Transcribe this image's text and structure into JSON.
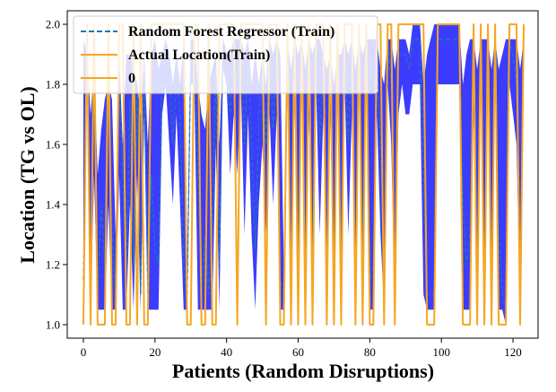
{
  "chart_data": {
    "type": "line",
    "xlabel": "Patients (Random Disruptions)",
    "ylabel": "Location (TG vs OL)",
    "xlim": [
      -4.5,
      127
    ],
    "ylim": [
      0.955,
      2.045
    ],
    "xticks": [
      0,
      20,
      40,
      60,
      80,
      100,
      120
    ],
    "yticks": [
      1.0,
      1.2,
      1.4,
      1.6,
      1.8,
      2.0
    ],
    "xtick_labels": [
      "0",
      "20",
      "40",
      "60",
      "80",
      "100",
      "120"
    ],
    "ytick_labels": [
      "1.0",
      "1.2",
      "1.4",
      "1.6",
      "1.8",
      "2.0"
    ],
    "legend_position": "top-left",
    "colors": {
      "predicted": "#1f77b4",
      "actual": "#f5a623",
      "zero": "#f5a623",
      "fill": "#1a1aff"
    },
    "legend": [
      {
        "label": "Random Forest Regressor (Train)",
        "style": "dashed",
        "color": "#1f77b4"
      },
      {
        "label": "Actual Location(Train)",
        "style": "solid",
        "color": "#f5a623"
      },
      {
        "label": "0",
        "style": "solid",
        "color": "#f5a623"
      }
    ],
    "x": [
      0,
      1,
      2,
      3,
      4,
      5,
      6,
      7,
      8,
      9,
      10,
      11,
      12,
      13,
      14,
      15,
      16,
      17,
      18,
      19,
      20,
      21,
      22,
      23,
      24,
      25,
      26,
      27,
      28,
      29,
      30,
      31,
      32,
      33,
      34,
      35,
      36,
      37,
      38,
      39,
      40,
      41,
      42,
      43,
      44,
      45,
      46,
      47,
      48,
      49,
      50,
      51,
      52,
      53,
      54,
      55,
      56,
      57,
      58,
      59,
      60,
      61,
      62,
      63,
      64,
      65,
      66,
      67,
      68,
      69,
      70,
      71,
      72,
      73,
      74,
      75,
      76,
      77,
      78,
      79,
      80,
      81,
      82,
      83,
      84,
      85,
      86,
      87,
      88,
      89,
      90,
      91,
      92,
      93,
      94,
      95,
      96,
      97,
      98,
      99,
      100,
      101,
      102,
      103,
      104,
      105,
      106,
      107,
      108,
      109,
      110,
      111,
      112,
      113,
      114,
      115,
      116,
      117,
      118,
      119,
      120,
      121,
      122,
      123
    ],
    "series": [
      {
        "name": "Random Forest Regressor (Train)",
        "values": [
          1.15,
          1.9,
          1.1,
          1.85,
          1.1,
          1.4,
          1.2,
          1.75,
          1.3,
          1.1,
          1.8,
          1.5,
          1.15,
          1.75,
          1.2,
          1.8,
          1.1,
          1.85,
          1.1,
          1.5,
          1.25,
          1.2,
          1.85,
          1.9,
          1.85,
          1.6,
          1.85,
          1.7,
          1.2,
          1.1,
          1.9,
          1.9,
          1.5,
          1.1,
          1.3,
          1.1,
          1.35,
          1.85,
          1.2,
          1.95,
          1.9,
          1.7,
          1.9,
          1.8,
          1.95,
          1.6,
          1.9,
          1.6,
          1.25,
          1.7,
          1.85,
          1.6,
          1.9,
          1.65,
          1.9,
          1.15,
          1.1,
          1.95,
          1.15,
          1.9,
          1.3,
          1.95,
          1.2,
          1.9,
          1.25,
          1.95,
          1.6,
          1.9,
          1.15,
          1.85,
          1.2,
          1.9,
          1.25,
          1.95,
          1.6,
          1.9,
          1.15,
          1.95,
          1.3,
          1.95,
          1.15,
          1.2,
          1.9,
          1.6,
          1.1,
          1.95,
          1.8,
          1.1,
          1.9,
          1.9,
          1.9,
          1.85,
          1.95,
          1.95,
          1.95,
          1.5,
          1.1,
          1.1,
          1.1,
          1.95,
          1.95,
          1.95,
          1.95,
          1.95,
          1.95,
          1.95,
          1.4,
          1.2,
          1.3,
          1.9,
          1.15,
          1.95,
          1.05,
          1.95,
          1.2,
          1.95,
          1.3,
          1.1,
          1.05,
          1.95,
          1.9,
          1.8,
          1.1,
          1.95
        ],
        "fill_top": [
          1.95,
          1.9,
          1.7,
          1.85,
          1.5,
          1.65,
          1.75,
          1.8,
          1.75,
          1.3,
          1.9,
          1.6,
          1.9,
          1.9,
          1.85,
          1.8,
          1.7,
          1.9,
          1.6,
          1.9,
          1.95,
          1.85,
          1.9,
          1.95,
          1.9,
          1.8,
          1.9,
          1.8,
          1.95,
          1.2,
          1.95,
          1.95,
          1.8,
          1.7,
          1.65,
          1.8,
          1.85,
          1.9,
          1.6,
          1.95,
          1.9,
          1.9,
          1.95,
          1.95,
          1.95,
          1.9,
          1.95,
          1.8,
          1.9,
          1.8,
          1.9,
          1.8,
          1.95,
          1.9,
          1.95,
          1.9,
          1.2,
          1.95,
          1.85,
          1.95,
          1.9,
          1.95,
          1.85,
          1.95,
          1.9,
          1.95,
          1.95,
          1.9,
          1.85,
          1.9,
          1.8,
          1.9,
          1.9,
          1.95,
          1.9,
          1.95,
          1.85,
          1.95,
          1.9,
          1.95,
          1.95,
          1.95,
          1.95,
          1.85,
          1.8,
          1.95,
          1.95,
          1.85,
          1.95,
          1.95,
          1.95,
          1.9,
          2.0,
          2.0,
          2.0,
          1.8,
          1.9,
          1.95,
          2.0,
          2.0,
          2.0,
          2.0,
          2.0,
          2.0,
          2.0,
          2.0,
          1.8,
          1.9,
          1.95,
          1.95,
          1.85,
          1.95,
          1.95,
          1.95,
          1.85,
          1.95,
          1.85,
          1.9,
          1.95,
          1.95,
          1.95,
          1.95,
          1.85,
          1.95
        ],
        "fill_bottom": [
          1.15,
          1.85,
          1.05,
          1.5,
          1.05,
          1.05,
          1.05,
          1.4,
          1.05,
          1.05,
          1.5,
          1.05,
          1.05,
          1.4,
          1.05,
          1.5,
          1.05,
          1.7,
          1.05,
          1.05,
          1.05,
          1.05,
          1.7,
          1.8,
          1.6,
          1.4,
          1.7,
          1.4,
          1.05,
          1.05,
          1.8,
          1.8,
          1.05,
          1.05,
          1.05,
          1.05,
          1.05,
          1.6,
          1.05,
          1.85,
          1.8,
          1.5,
          1.7,
          1.5,
          1.8,
          1.3,
          1.7,
          1.3,
          1.05,
          1.4,
          1.6,
          1.3,
          1.7,
          1.4,
          1.7,
          1.05,
          1.05,
          1.8,
          1.05,
          1.75,
          1.05,
          1.8,
          1.05,
          1.7,
          1.05,
          1.8,
          1.3,
          1.7,
          1.05,
          1.7,
          1.05,
          1.75,
          1.05,
          1.8,
          1.3,
          1.7,
          1.05,
          1.8,
          1.05,
          1.8,
          1.05,
          1.05,
          1.7,
          1.3,
          1.05,
          1.8,
          1.6,
          1.05,
          1.7,
          1.8,
          1.7,
          1.7,
          1.8,
          1.8,
          1.8,
          1.1,
          1.05,
          1.05,
          1.05,
          1.8,
          1.8,
          1.8,
          1.8,
          1.8,
          1.8,
          1.8,
          1.05,
          1.05,
          1.05,
          1.7,
          1.05,
          1.8,
          1.0,
          1.8,
          1.05,
          1.8,
          1.05,
          1.05,
          1.0,
          1.8,
          1.7,
          1.6,
          1.05,
          1.8
        ]
      },
      {
        "name": "Actual Location(Train)",
        "values": [
          1,
          2,
          1,
          2,
          1,
          1,
          1,
          2,
          1,
          1,
          2,
          2,
          1,
          1,
          2,
          1,
          2,
          1,
          1,
          2,
          2,
          2,
          2,
          2,
          2,
          2,
          2,
          2,
          2,
          1,
          1,
          2,
          2,
          1,
          1,
          2,
          1,
          1,
          2,
          2,
          2,
          2,
          2,
          1,
          2,
          2,
          2,
          2,
          2,
          2,
          2,
          1,
          2,
          2,
          2,
          1,
          1,
          2,
          1,
          2,
          1,
          2,
          1,
          2,
          1,
          2,
          2,
          2,
          1,
          2,
          1,
          2,
          1,
          2,
          2,
          2,
          1,
          2,
          1,
          2,
          1,
          1,
          2,
          2,
          1,
          2,
          2,
          1,
          2,
          2,
          2,
          2,
          2,
          2,
          2,
          2,
          1,
          1,
          1,
          2,
          2,
          2,
          2,
          2,
          2,
          2,
          1,
          1,
          1,
          2,
          1,
          2,
          1,
          2,
          1,
          2,
          1,
          1,
          1,
          2,
          2,
          2,
          1,
          2
        ]
      }
    ]
  }
}
